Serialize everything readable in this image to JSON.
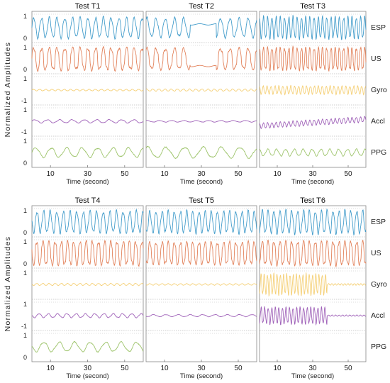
{
  "chart_data": {
    "type": "line",
    "ylabel": "Normalized Amplitudes",
    "xlabel": "Time (second)",
    "xlim": [
      0,
      60
    ],
    "xticks": [
      10,
      30,
      50
    ],
    "signals": [
      "ESP",
      "US",
      "Gyro",
      "Accl",
      "PPG"
    ],
    "colors": {
      "ESP": "#3a98c8",
      "US": "#e07b52",
      "Gyro": "#f2c04a",
      "Accl": "#9b5bb5",
      "PPG": "#7fb23c"
    },
    "row_ticks": [
      {
        "ESP": [
          "1",
          "0"
        ],
        "US": [
          "1",
          "0"
        ],
        "Gyro": [
          "1",
          "-1"
        ],
        "Accl": [
          "1",
          "-1"
        ],
        "PPG": [
          "1",
          "0"
        ]
      },
      {
        "ESP": [
          "1",
          "0"
        ],
        "US": [
          "1",
          "0"
        ],
        "Gyro": [
          "1",
          ""
        ],
        "Accl": [
          "1",
          "-1"
        ],
        "PPG": [
          "1",
          "0"
        ]
      }
    ],
    "panels": [
      {
        "title": "Test T1",
        "row": 0,
        "col": 0,
        "show": [
          "ESP",
          "US",
          "Gyro",
          "Accl",
          "PPG"
        ],
        "freq": {
          "ESP": 0.24,
          "US": 0.24,
          "Gyro": 0.3,
          "Accl": 0.15,
          "PPG": 0.12
        },
        "gaps": [],
        "amp": {
          "ESP": 0.75,
          "US": 0.8,
          "Gyro": 0.06,
          "Accl": 0.12,
          "PPG": 0.35
        }
      },
      {
        "title": "Test T2",
        "row": 0,
        "col": 1,
        "show": [
          "ESP",
          "US",
          "Gyro",
          "Accl",
          "PPG"
        ],
        "freq": {
          "ESP": 0.2,
          "US": 0.2,
          "Gyro": 0.3,
          "Accl": 0.15,
          "PPG": 0.1
        },
        "gaps": [
          [
            24,
            38
          ]
        ],
        "amp": {
          "ESP": 0.7,
          "US": 0.75,
          "Gyro": 0.08,
          "Accl": 0.06,
          "PPG": 0.4
        }
      },
      {
        "title": "Test T3",
        "row": 0,
        "col": 2,
        "show": [
          "ESP",
          "US",
          "Gyro",
          "Accl",
          "PPG"
        ],
        "freq": {
          "ESP": 0.42,
          "US": 0.42,
          "Gyro": 0.45,
          "Accl": 0.42,
          "PPG": 0.2
        },
        "gaps": [],
        "amp": {
          "ESP": 0.8,
          "US": 0.8,
          "Gyro": 0.3,
          "Accl": 0.2,
          "PPG": 0.25
        }
      },
      {
        "title": "Test T4",
        "row": 1,
        "col": 0,
        "show": [
          "ESP",
          "US",
          "Gyro",
          "Accl",
          "PPG"
        ],
        "freq": {
          "ESP": 0.28,
          "US": 0.3,
          "Gyro": 0.3,
          "Accl": 0.2,
          "PPG": 0.12
        },
        "gaps": [],
        "amp": {
          "ESP": 0.8,
          "US": 0.85,
          "Gyro": 0.08,
          "Accl": 0.15,
          "PPG": 0.35
        }
      },
      {
        "title": "Test T5",
        "row": 1,
        "col": 1,
        "show": [
          "ESP",
          "US",
          "Gyro",
          "Accl"
        ],
        "freq": {
          "ESP": 0.3,
          "US": 0.3,
          "Gyro": 0.3,
          "Accl": 0.15
        },
        "gaps": [],
        "amp": {
          "ESP": 0.8,
          "US": 0.8,
          "Gyro": 0.06,
          "Accl": 0.08
        }
      },
      {
        "title": "Test T6",
        "row": 1,
        "col": 2,
        "show": [
          "ESP",
          "US",
          "Gyro",
          "Accl"
        ],
        "freq": {
          "ESP": 0.3,
          "US": 0.3,
          "Gyro": 0.55,
          "Accl": 0.5
        },
        "gaps": [],
        "burst": [
          0,
          38
        ],
        "amp": {
          "ESP": 0.85,
          "US": 0.85,
          "Gyro": 0.75,
          "Accl": 0.6
        }
      }
    ]
  }
}
